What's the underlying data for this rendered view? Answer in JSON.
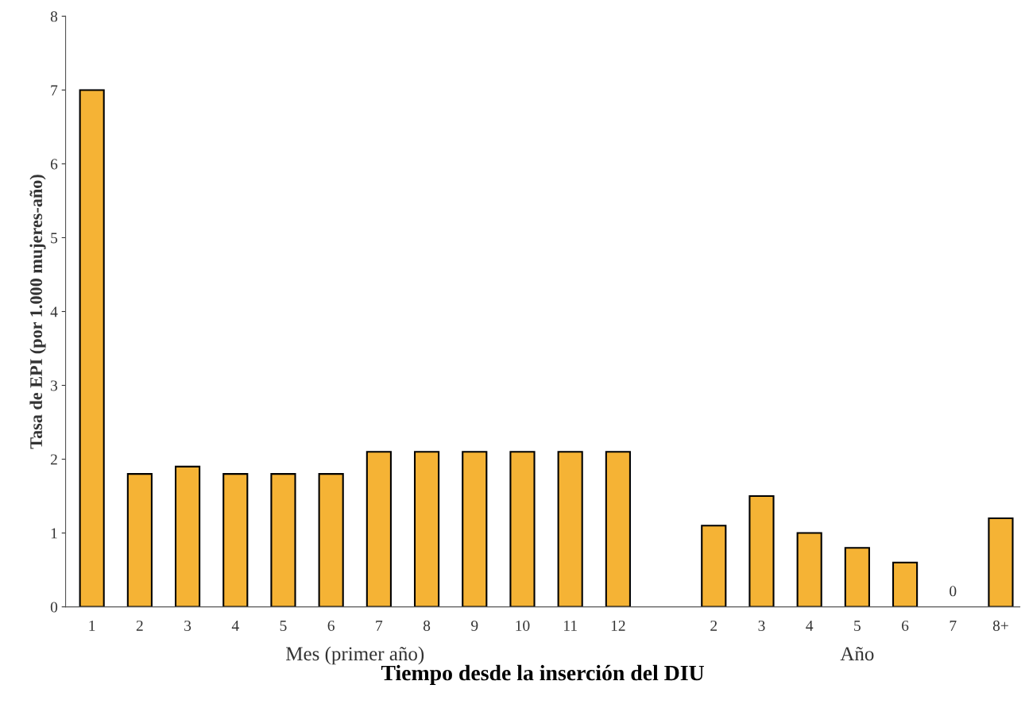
{
  "chart_data": {
    "type": "bar",
    "ylabel": "Tasa de EPI (por 1.000 mujeres-año)",
    "xlabel": "Tiempo desde la inserción del DIU",
    "categories": [
      "1",
      "2",
      "3",
      "4",
      "5",
      "6",
      "7",
      "8",
      "9",
      "10",
      "11",
      "12",
      null,
      "2",
      "3",
      "4",
      "5",
      "6",
      "7",
      "8+"
    ],
    "values": [
      7.0,
      1.8,
      1.9,
      1.8,
      1.8,
      1.8,
      2.1,
      2.1,
      2.1,
      2.1,
      2.1,
      2.1,
      null,
      1.1,
      1.5,
      1.0,
      0.8,
      0.6,
      0,
      1.2
    ],
    "value_labels": [
      null,
      null,
      null,
      null,
      null,
      null,
      null,
      null,
      null,
      null,
      null,
      null,
      null,
      null,
      null,
      null,
      null,
      null,
      "0",
      null
    ],
    "color": "#f5b335",
    "ylim": [
      0,
      8
    ],
    "yticks": [
      0,
      1,
      2,
      3,
      4,
      5,
      6,
      7,
      8
    ],
    "grid": false,
    "annotations": [
      "Mes (primer año)",
      "Año"
    ]
  }
}
